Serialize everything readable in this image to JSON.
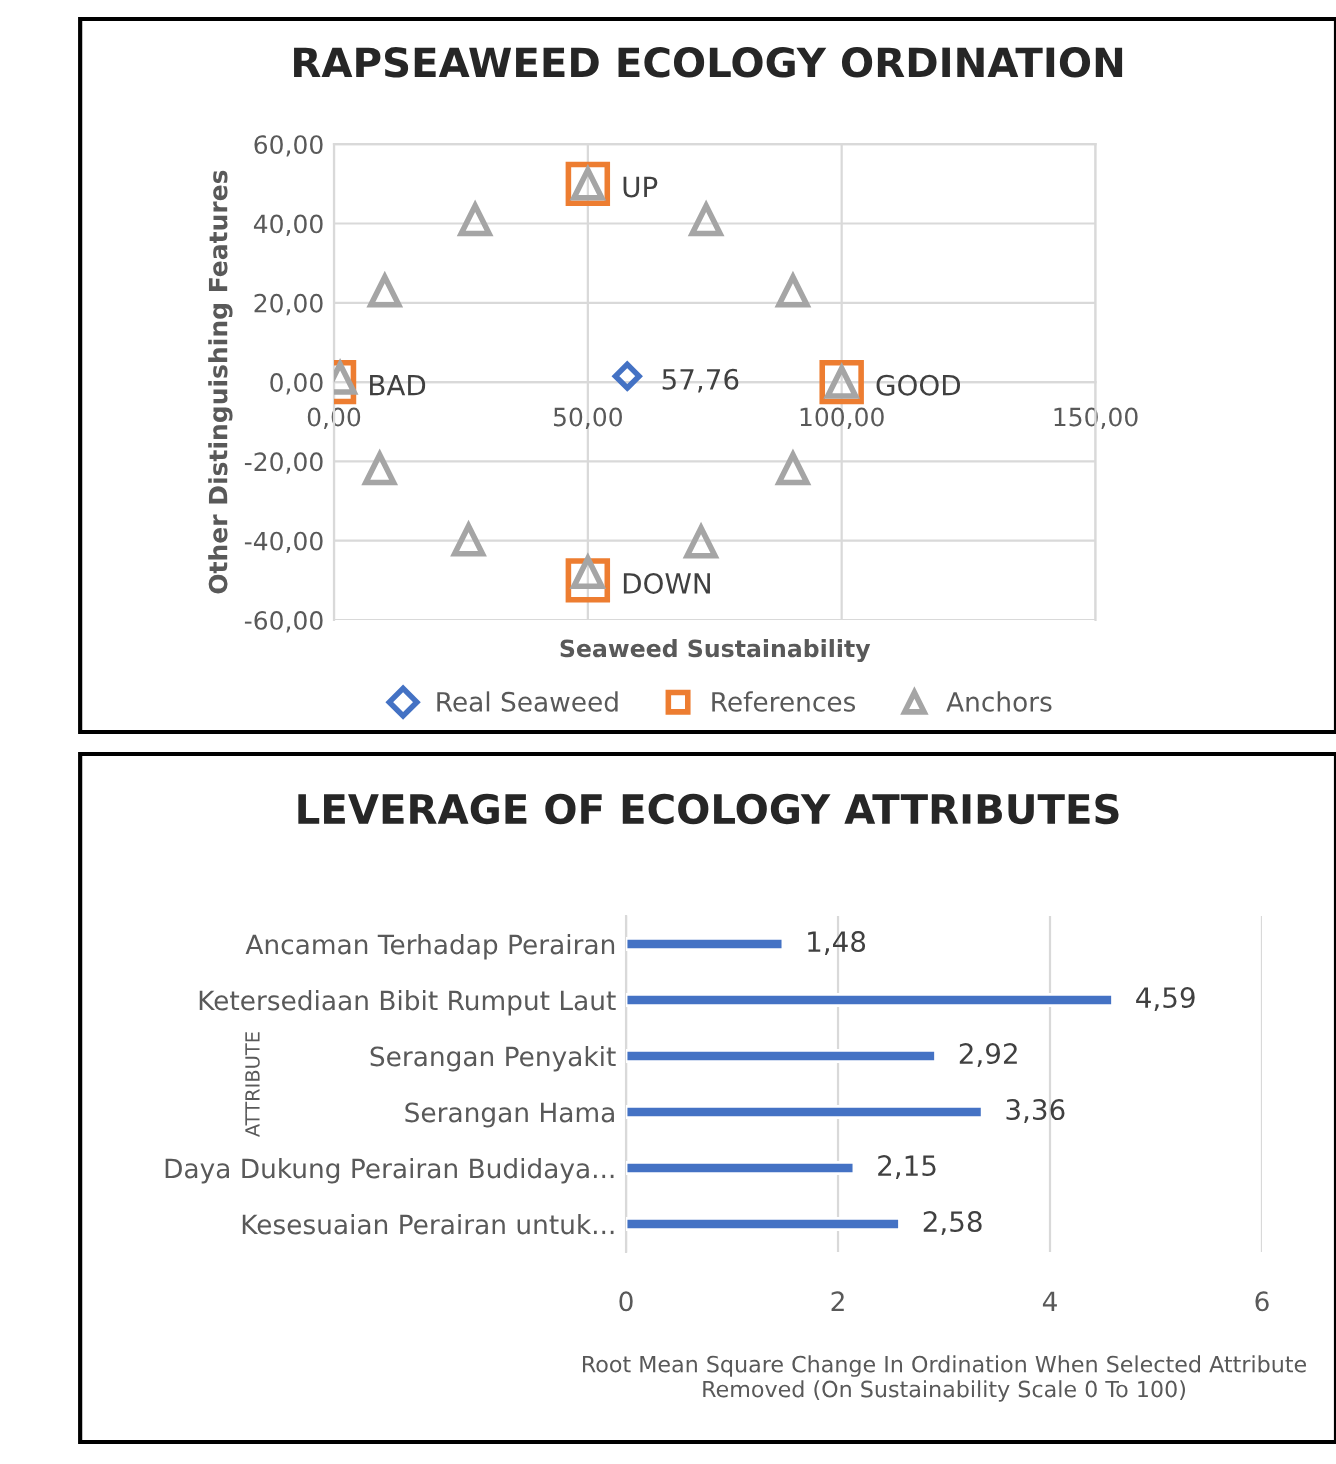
{
  "chart_data": [
    {
      "type": "scatter",
      "title": "RAPSEAWEED ECOLOGY ORDINATION",
      "xlabel": "Seaweed Sustainability",
      "ylabel": "Other Distinguishing Features",
      "series": [
        {
          "name": "Real Seaweed",
          "color": "#4472c4",
          "marker": "diamond",
          "x": [
            57.76
          ],
          "values": [
            1.5
          ]
        },
        {
          "name": "References",
          "color": "#ed7d31",
          "marker": "square",
          "x": [
            0,
            100,
            50,
            50
          ],
          "values": [
            0,
            0,
            50,
            -50
          ]
        },
        {
          "name": "Anchors",
          "color": "#a5a5a5",
          "marker": "triangle",
          "x": [
            1.2,
            100,
            50,
            50,
            10,
            27.8,
            73.3,
            90.4,
            9,
            26.5,
            72.3,
            90.4
          ],
          "values": [
            1,
            0,
            50,
            -48,
            23,
            41,
            41,
            23,
            -21.8,
            -39.8,
            -40.3,
            -21.8
          ]
        }
      ],
      "annotations": [
        {
          "text": "57,76",
          "x": 57.76,
          "y": 1.5
        },
        {
          "text": "BAD",
          "x": 0,
          "y": 0
        },
        {
          "text": "GOOD",
          "x": 100,
          "y": 0
        },
        {
          "text": "UP",
          "x": 50,
          "y": 50
        },
        {
          "text": "DOWN",
          "x": 50,
          "y": -50
        }
      ],
      "xlim": [
        0,
        150
      ],
      "xticks": [
        {
          "value": 0,
          "label": "0,00"
        },
        {
          "value": 50,
          "label": "50,00"
        },
        {
          "value": 100,
          "label": "100,00"
        },
        {
          "value": 150,
          "label": "150,00"
        }
      ],
      "ylim": [
        -60,
        60
      ],
      "yticks": [
        {
          "value": -60,
          "label": "-60,00"
        },
        {
          "value": -40,
          "label": "-40,00"
        },
        {
          "value": -20,
          "label": "-20,00"
        },
        {
          "value": 0,
          "label": "0,00"
        },
        {
          "value": 20,
          "label": "20,00"
        },
        {
          "value": 40,
          "label": "40,00"
        },
        {
          "value": 60,
          "label": "60,00"
        }
      ],
      "grid": true,
      "legend": "bottom"
    },
    {
      "type": "bar",
      "orientation": "horizontal",
      "title": "LEVERAGE OF ECOLOGY ATTRIBUTES",
      "xlabel": "Root Mean Square Change In Ordination When Selected Attribute\nRemoved (On Sustainability Scale 0 To 100)",
      "ylabel": "ATTRIBUTE",
      "categories": [
        "Ancaman Terhadap Perairan",
        "Ketersediaan Bibit Rumput Laut",
        "Serangan Penyakit",
        "Serangan Hama",
        "Daya Dukung Perairan Budidaya...",
        "Kesesuaian Perairan untuk..."
      ],
      "values": [
        1.48,
        4.59,
        2.92,
        3.36,
        2.15,
        2.58
      ],
      "value_labels": [
        "1,48",
        "4,59",
        "2,92",
        "3,36",
        "2,15",
        "2,58"
      ],
      "color": "#4472c4",
      "xlim": [
        0,
        6
      ],
      "xticks": [
        0,
        2,
        4,
        6
      ],
      "grid": "x"
    }
  ]
}
